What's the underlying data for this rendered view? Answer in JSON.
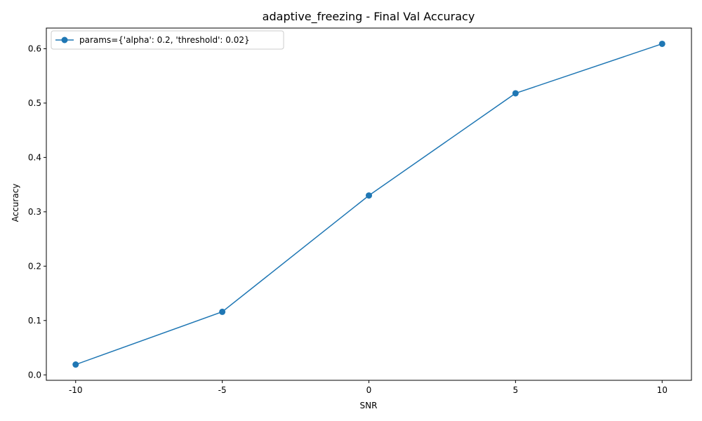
{
  "chart_data": {
    "type": "line",
    "title": "adaptive_freezing - Final Val Accuracy",
    "xlabel": "SNR",
    "ylabel": "Accuracy",
    "categories": [
      "-10",
      "-5",
      "0",
      "5",
      "10"
    ],
    "x": [
      -10,
      -5,
      0,
      5,
      10
    ],
    "xlim": [
      -11,
      11
    ],
    "ylim": [
      -0.01,
      0.638
    ],
    "yticks": [
      "0.0",
      "0.1",
      "0.2",
      "0.3",
      "0.4",
      "0.5",
      "0.6"
    ],
    "ytick_values": [
      0.0,
      0.1,
      0.2,
      0.3,
      0.4,
      0.5,
      0.6
    ],
    "grid": false,
    "legend_position": "top-left",
    "series": [
      {
        "name": "params={'alpha': 0.2, 'threshold': 0.02}",
        "values": [
          0.019,
          0.116,
          0.33,
          0.518,
          0.609
        ],
        "color": "#1f77b4",
        "marker": "circle"
      }
    ]
  }
}
